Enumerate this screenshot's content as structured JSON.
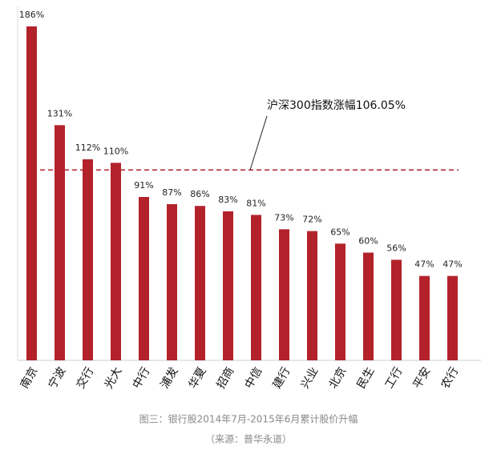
{
  "chart_data": {
    "type": "bar",
    "categories": [
      "南京",
      "宁波",
      "交行",
      "光大",
      "中行",
      "浦发",
      "华夏",
      "招商",
      "中信",
      "建行",
      "兴业",
      "北京",
      "民生",
      "工行",
      "平安",
      "农行"
    ],
    "values": [
      186,
      131,
      112,
      110,
      91,
      87,
      86,
      83,
      81,
      73,
      72,
      65,
      60,
      56,
      47,
      47
    ],
    "value_labels": [
      "186%",
      "131%",
      "112%",
      "110%",
      "91%",
      "87%",
      "86%",
      "83%",
      "81%",
      "73%",
      "72%",
      "65%",
      "60%",
      "56%",
      "47%",
      "47%"
    ],
    "color": "#b3222b",
    "reference_line": {
      "value": 106.05,
      "label": "沪深300指数涨幅106.05%",
      "color": "#b3222b"
    },
    "caption": "图三：银行股2014年7月-2015年6月累计股价升幅",
    "source": "（来源：普华永道）"
  }
}
